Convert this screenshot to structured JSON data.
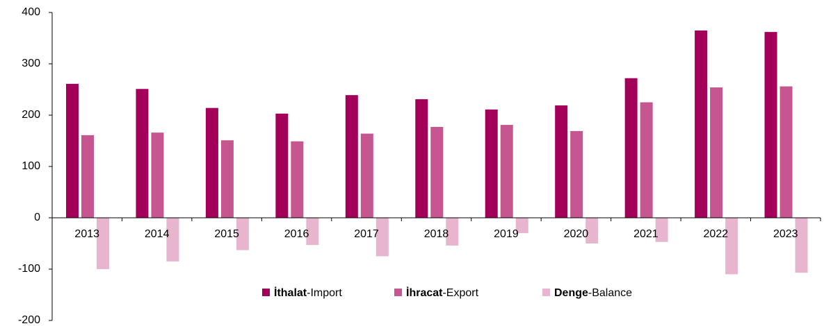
{
  "chart_data": {
    "type": "bar",
    "categories": [
      "2013",
      "2014",
      "2015",
      "2016",
      "2017",
      "2018",
      "2019",
      "2020",
      "2021",
      "2022",
      "2023"
    ],
    "series": [
      {
        "name": "İthalat-Import",
        "color": "#a3005a",
        "values": [
          261,
          251,
          214,
          203,
          239,
          231,
          211,
          219,
          272,
          365,
          362
        ]
      },
      {
        "name": "İhracat-Export",
        "color": "#c5568f",
        "values": [
          161,
          166,
          151,
          149,
          164,
          177,
          181,
          169,
          225,
          254,
          256
        ]
      },
      {
        "name": "Denge-Balance",
        "color": "#e8b5cf",
        "values": [
          -100,
          -85,
          -63,
          -53,
          -75,
          -54,
          -30,
          -50,
          -47,
          -110,
          -107
        ]
      }
    ],
    "ylim": [
      -200,
      400
    ],
    "yticks": [
      -200,
      -100,
      0,
      100,
      200,
      300,
      400
    ],
    "grid": false
  }
}
